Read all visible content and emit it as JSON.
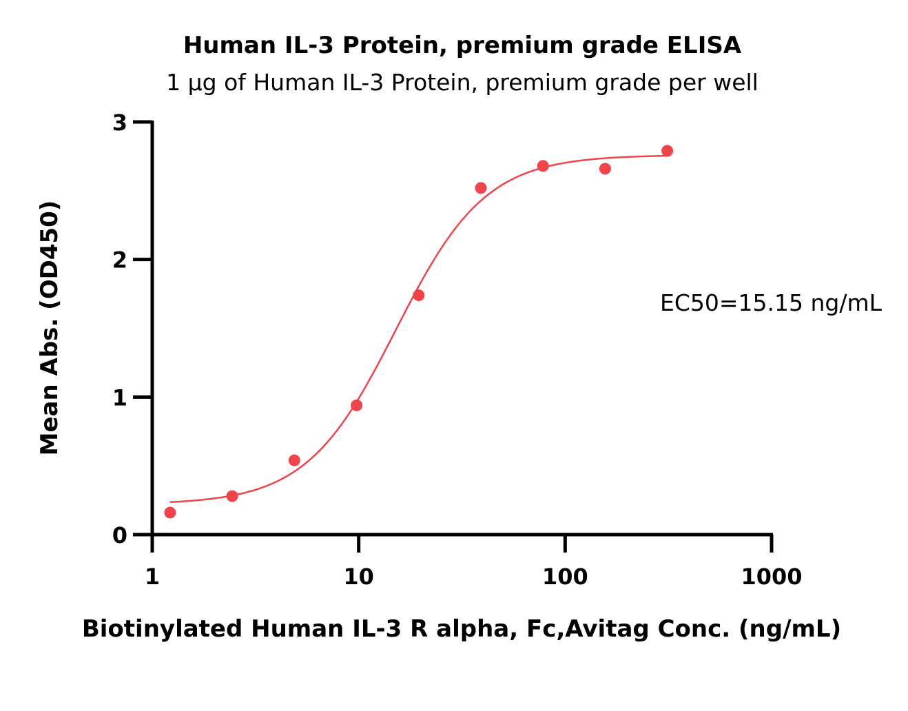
{
  "chart_data": {
    "type": "scatter",
    "title": "Human IL-3 Protein, premium grade ELISA",
    "subtitle": "1 μg of Human IL-3 Protein, premium grade per well",
    "xlabel": "Biotinylated Human IL-3 R alpha, Fc,Avitag Conc. (ng/mL)",
    "ylabel": "Mean Abs. (OD450)",
    "x_scale": "log",
    "xlim": [
      1,
      1000
    ],
    "ylim": [
      0,
      3
    ],
    "x_ticks": [
      1,
      10,
      100,
      1000
    ],
    "x_tick_labels": [
      "1",
      "10",
      "100",
      "1000"
    ],
    "y_ticks": [
      0,
      1,
      2,
      3
    ],
    "y_tick_labels": [
      "0",
      "1",
      "2",
      "3"
    ],
    "grid": false,
    "legend": "none",
    "series": [
      {
        "x": [
          1.22,
          2.44,
          4.88,
          9.77,
          19.53,
          39.06,
          78.13,
          156.25,
          312.5
        ],
        "y": [
          0.16,
          0.28,
          0.54,
          0.94,
          1.74,
          2.52,
          2.68,
          2.66,
          2.79
        ],
        "color": "#f0444a",
        "fit": {
          "type": "4PL sigmoid",
          "bottom": 0.22,
          "top": 2.76,
          "ec50": 15.15,
          "hill": 2.0
        }
      }
    ],
    "annotations": [
      "EC50=15.15 ng/mL"
    ]
  }
}
